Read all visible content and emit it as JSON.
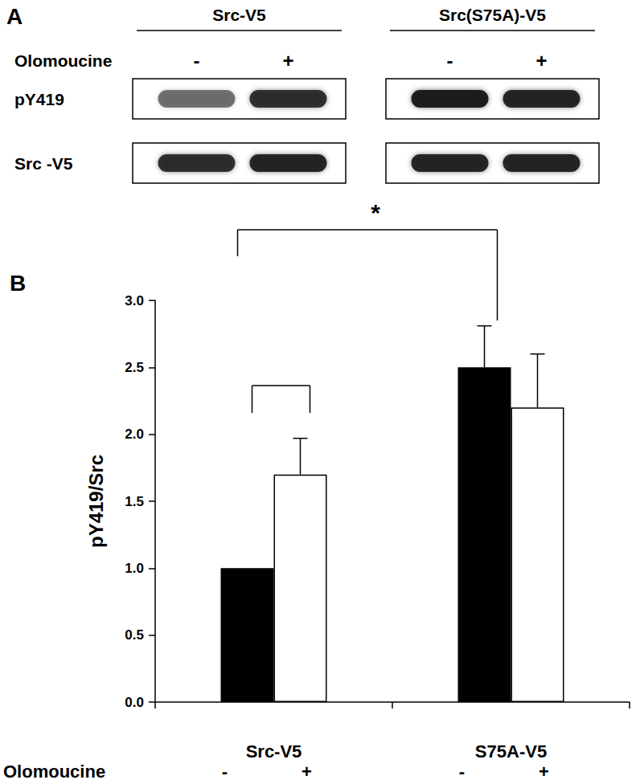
{
  "panel_a": {
    "panel_label": "A",
    "treatment": "Olomoucine",
    "groups": [
      {
        "label": "Src-V5",
        "lanes": [
          "-",
          "+"
        ]
      },
      {
        "label": "Src(S75A)-V5",
        "lanes": [
          "-",
          "+"
        ]
      }
    ],
    "rows": [
      {
        "label": "pY419",
        "band_intensity": [
          [
            0.55,
            0.85
          ],
          [
            0.95,
            0.9
          ]
        ]
      },
      {
        "label": "Src -V5",
        "band_intensity": [
          [
            0.85,
            0.9
          ],
          [
            0.9,
            0.9
          ]
        ]
      }
    ]
  },
  "chart_data": {
    "panel_label": "B",
    "type": "bar",
    "ylabel": "pY419/Src",
    "x_row_label": "Olomoucine",
    "categories": [
      "Src-V5",
      "S75A-V5"
    ],
    "series": [
      {
        "name": "-",
        "color": "#000000",
        "values": [
          1.0,
          2.5
        ],
        "errors": [
          null,
          0.31
        ]
      },
      {
        "name": "+",
        "color": "#ffffff",
        "values": [
          1.7,
          2.2
        ],
        "errors": [
          0.27,
          0.4
        ]
      }
    ],
    "ylim": [
      0,
      3
    ],
    "yticks": [
      {
        "value": 0,
        "label": "0.0"
      },
      0.5,
      {
        "value": 1,
        "label": "1.0"
      },
      1.5,
      {
        "value": 2,
        "label": "2.0"
      },
      2.5,
      {
        "value": 3,
        "label": "3.0"
      }
    ],
    "grid": false,
    "brackets": [
      {
        "from": {
          "category": "Src-V5",
          "series": "-"
        },
        "to": {
          "category": "S75A-V5",
          "series": "-"
        },
        "label": "*"
      },
      {
        "from": {
          "category": "Src-V5",
          "series": "-"
        },
        "to": {
          "category": "Src-V5",
          "series": "+"
        }
      }
    ]
  }
}
